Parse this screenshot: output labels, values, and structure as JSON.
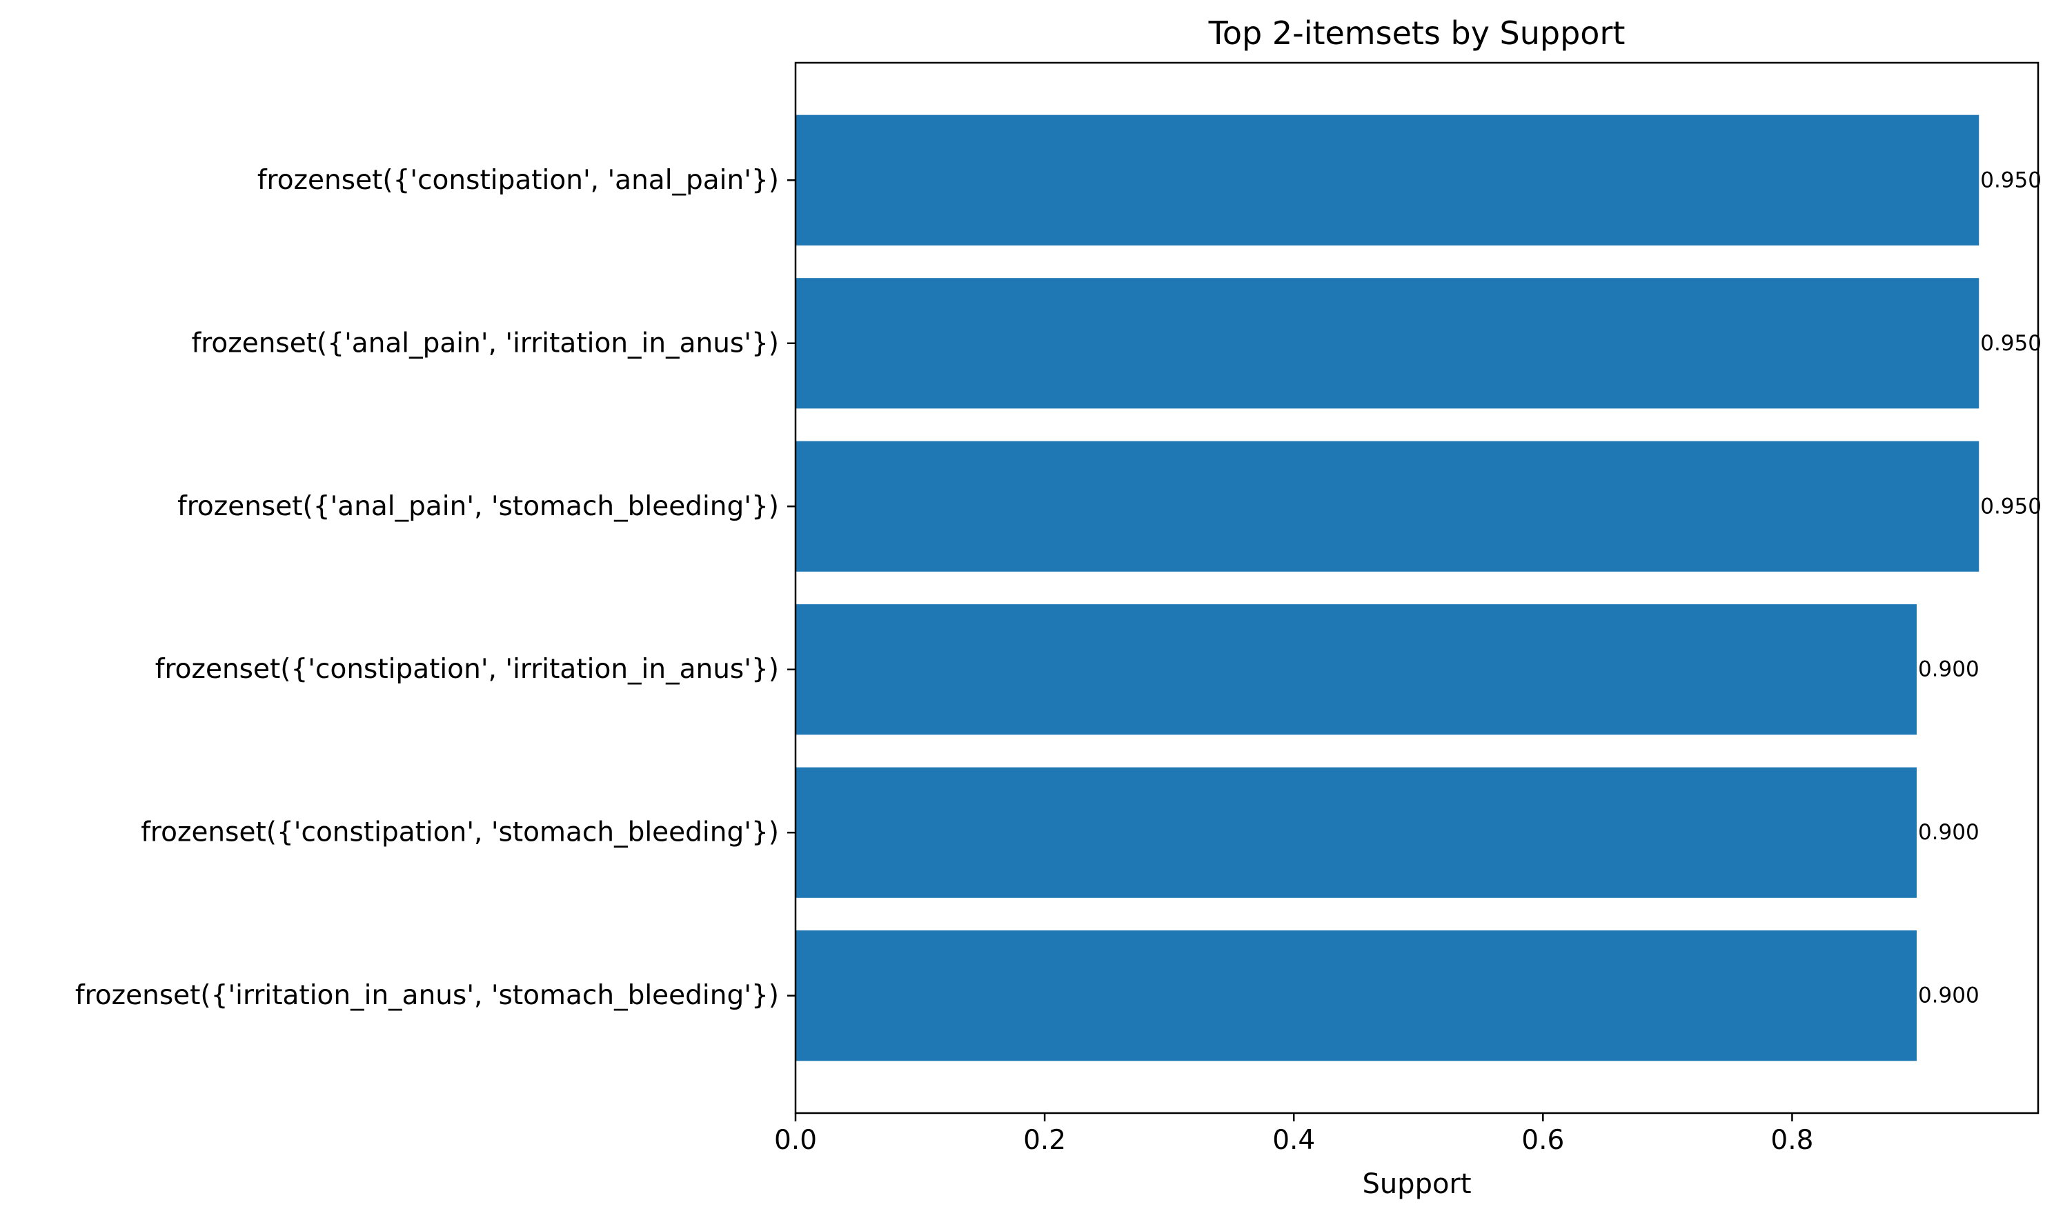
{
  "chart_data": {
    "type": "bar",
    "orientation": "horizontal",
    "title": "Top 2-itemsets by Support",
    "xlabel": "Support",
    "ylabel": "",
    "xlim": [
      0,
      0.9975
    ],
    "xticks": [
      0.0,
      0.2,
      0.4,
      0.6,
      0.8
    ],
    "xtick_labels": [
      "0.0",
      "0.2",
      "0.4",
      "0.6",
      "0.8"
    ],
    "categories": [
      "frozenset({'constipation', 'anal_pain'})",
      "frozenset({'anal_pain', 'irritation_in_anus'})",
      "frozenset({'anal_pain', 'stomach_bleeding'})",
      "frozenset({'constipation', 'irritation_in_anus'})",
      "frozenset({'constipation', 'stomach_bleeding'})",
      "frozenset({'irritation_in_anus', 'stomach_bleeding'})"
    ],
    "values": [
      0.95,
      0.95,
      0.95,
      0.9,
      0.9,
      0.9
    ],
    "data_labels": [
      "0.950",
      "0.950",
      "0.950",
      "0.900",
      "0.900",
      "0.900"
    ],
    "bar_color": "#1f77b4",
    "grid": false,
    "legend": false
  }
}
